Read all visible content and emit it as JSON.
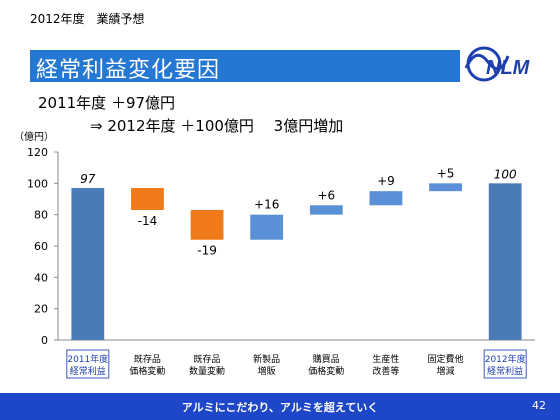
{
  "header": {
    "subtitle": "2012年度　業績予想",
    "title": "経常利益変化要因",
    "logo_text": "NLM"
  },
  "summary": {
    "line1": "2011年度 ＋97億円",
    "line2": "⇒ 2012年度 ＋100億円　 3億円増加"
  },
  "chart_data": {
    "type": "bar",
    "subtype": "waterfall",
    "ylabel": "（億円）",
    "ylim": [
      0,
      120
    ],
    "yticks": [
      0,
      20,
      40,
      60,
      80,
      100,
      120
    ],
    "categories": [
      "2011年度\n経常利益",
      "既存品\n価格変動",
      "既存品\n数量変動",
      "新製品\n増販",
      "購買品\n価格変動",
      "生産性\n改善等",
      "固定費他\n増減",
      "2012年度\n経常利益"
    ],
    "values": [
      97,
      -14,
      -19,
      16,
      6,
      9,
      5,
      100
    ],
    "kinds": [
      "total",
      "delta",
      "delta",
      "delta",
      "delta",
      "delta",
      "delta",
      "total"
    ],
    "data_labels": [
      "97",
      "-14",
      "-19",
      "+16",
      "+6",
      "+9",
      "+5",
      "100"
    ],
    "grid": false,
    "colors": {
      "total": "#4a7bb7",
      "increase": "#5b8fd6",
      "decrease": "#f07a1a"
    }
  },
  "footer": {
    "slogan": "アルミにこだわり、アルミを超えていく",
    "page": "42"
  }
}
